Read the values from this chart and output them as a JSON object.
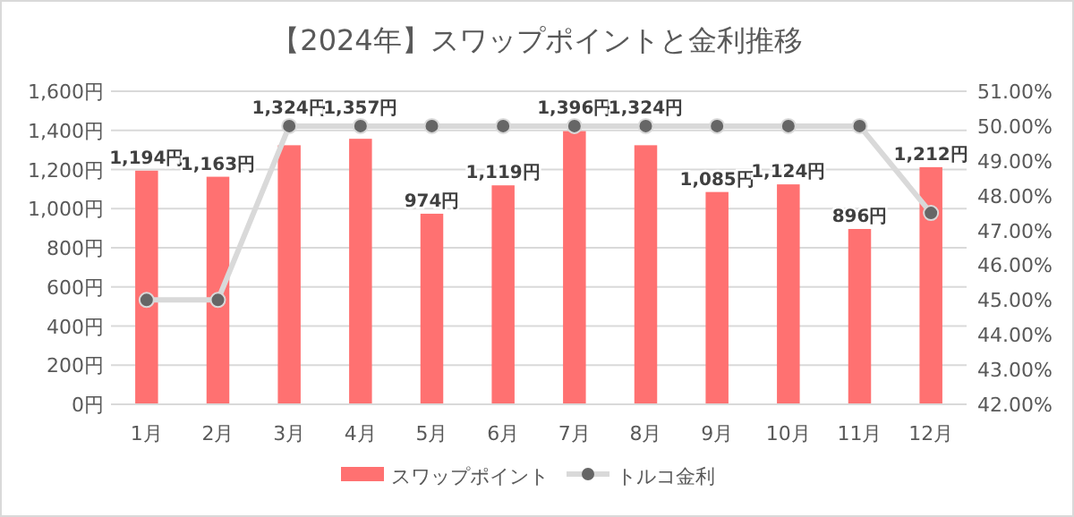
{
  "chart_data": {
    "type": "bar",
    "title": "【2024年】スワップポイントと金利推移",
    "categories": [
      "1月",
      "2月",
      "3月",
      "4月",
      "5月",
      "6月",
      "7月",
      "8月",
      "9月",
      "10月",
      "11月",
      "12月"
    ],
    "series": [
      {
        "name": "スワップポイント",
        "color": "#ff7171",
        "values": [
          1194,
          1163,
          1324,
          1357,
          974,
          1119,
          1396,
          1324,
          1085,
          1124,
          896,
          1212
        ],
        "value_labels": [
          "1,194円",
          "1,163円",
          "1,324円",
          "1,357円",
          "974円",
          "1,119円",
          "1,396円",
          "1,324円",
          "1,085円",
          "1,124円",
          "896円",
          "1,212円"
        ]
      },
      {
        "name": "トルコ金利",
        "type": "line",
        "axis": "y2",
        "color": "#d9d9d9",
        "marker": "circle",
        "values": [
          45,
          45,
          50,
          50,
          50,
          50,
          50,
          50,
          50,
          50,
          50,
          47.5
        ]
      }
    ],
    "ylim": [
      0,
      1600
    ],
    "yticks": [
      {
        "value": 0,
        "label": "0円"
      },
      {
        "value": 200,
        "label": "200円"
      },
      {
        "value": 400,
        "label": "400円"
      },
      {
        "value": 600,
        "label": "600円"
      },
      {
        "value": 800,
        "label": "800円"
      },
      {
        "value": 1000,
        "label": "1,000円"
      },
      {
        "value": 1200,
        "label": "1,200円"
      },
      {
        "value": 1400,
        "label": "1,400円"
      },
      {
        "value": 1600,
        "label": "1,600円"
      }
    ],
    "y2lim": [
      42,
      51
    ],
    "y2ticks": [
      {
        "value": 42,
        "label": "42.00%"
      },
      {
        "value": 43,
        "label": "43.00%"
      },
      {
        "value": 44,
        "label": "44.00%"
      },
      {
        "value": 45,
        "label": "45.00%"
      },
      {
        "value": 46,
        "label": "46.00%"
      },
      {
        "value": 47,
        "label": "47.00%"
      },
      {
        "value": 48,
        "label": "48.00%"
      },
      {
        "value": 49,
        "label": "49.00%"
      },
      {
        "value": 50,
        "label": "50.00%"
      },
      {
        "value": 51,
        "label": "51.00%"
      }
    ],
    "grid": "y",
    "legend": "bottom"
  }
}
